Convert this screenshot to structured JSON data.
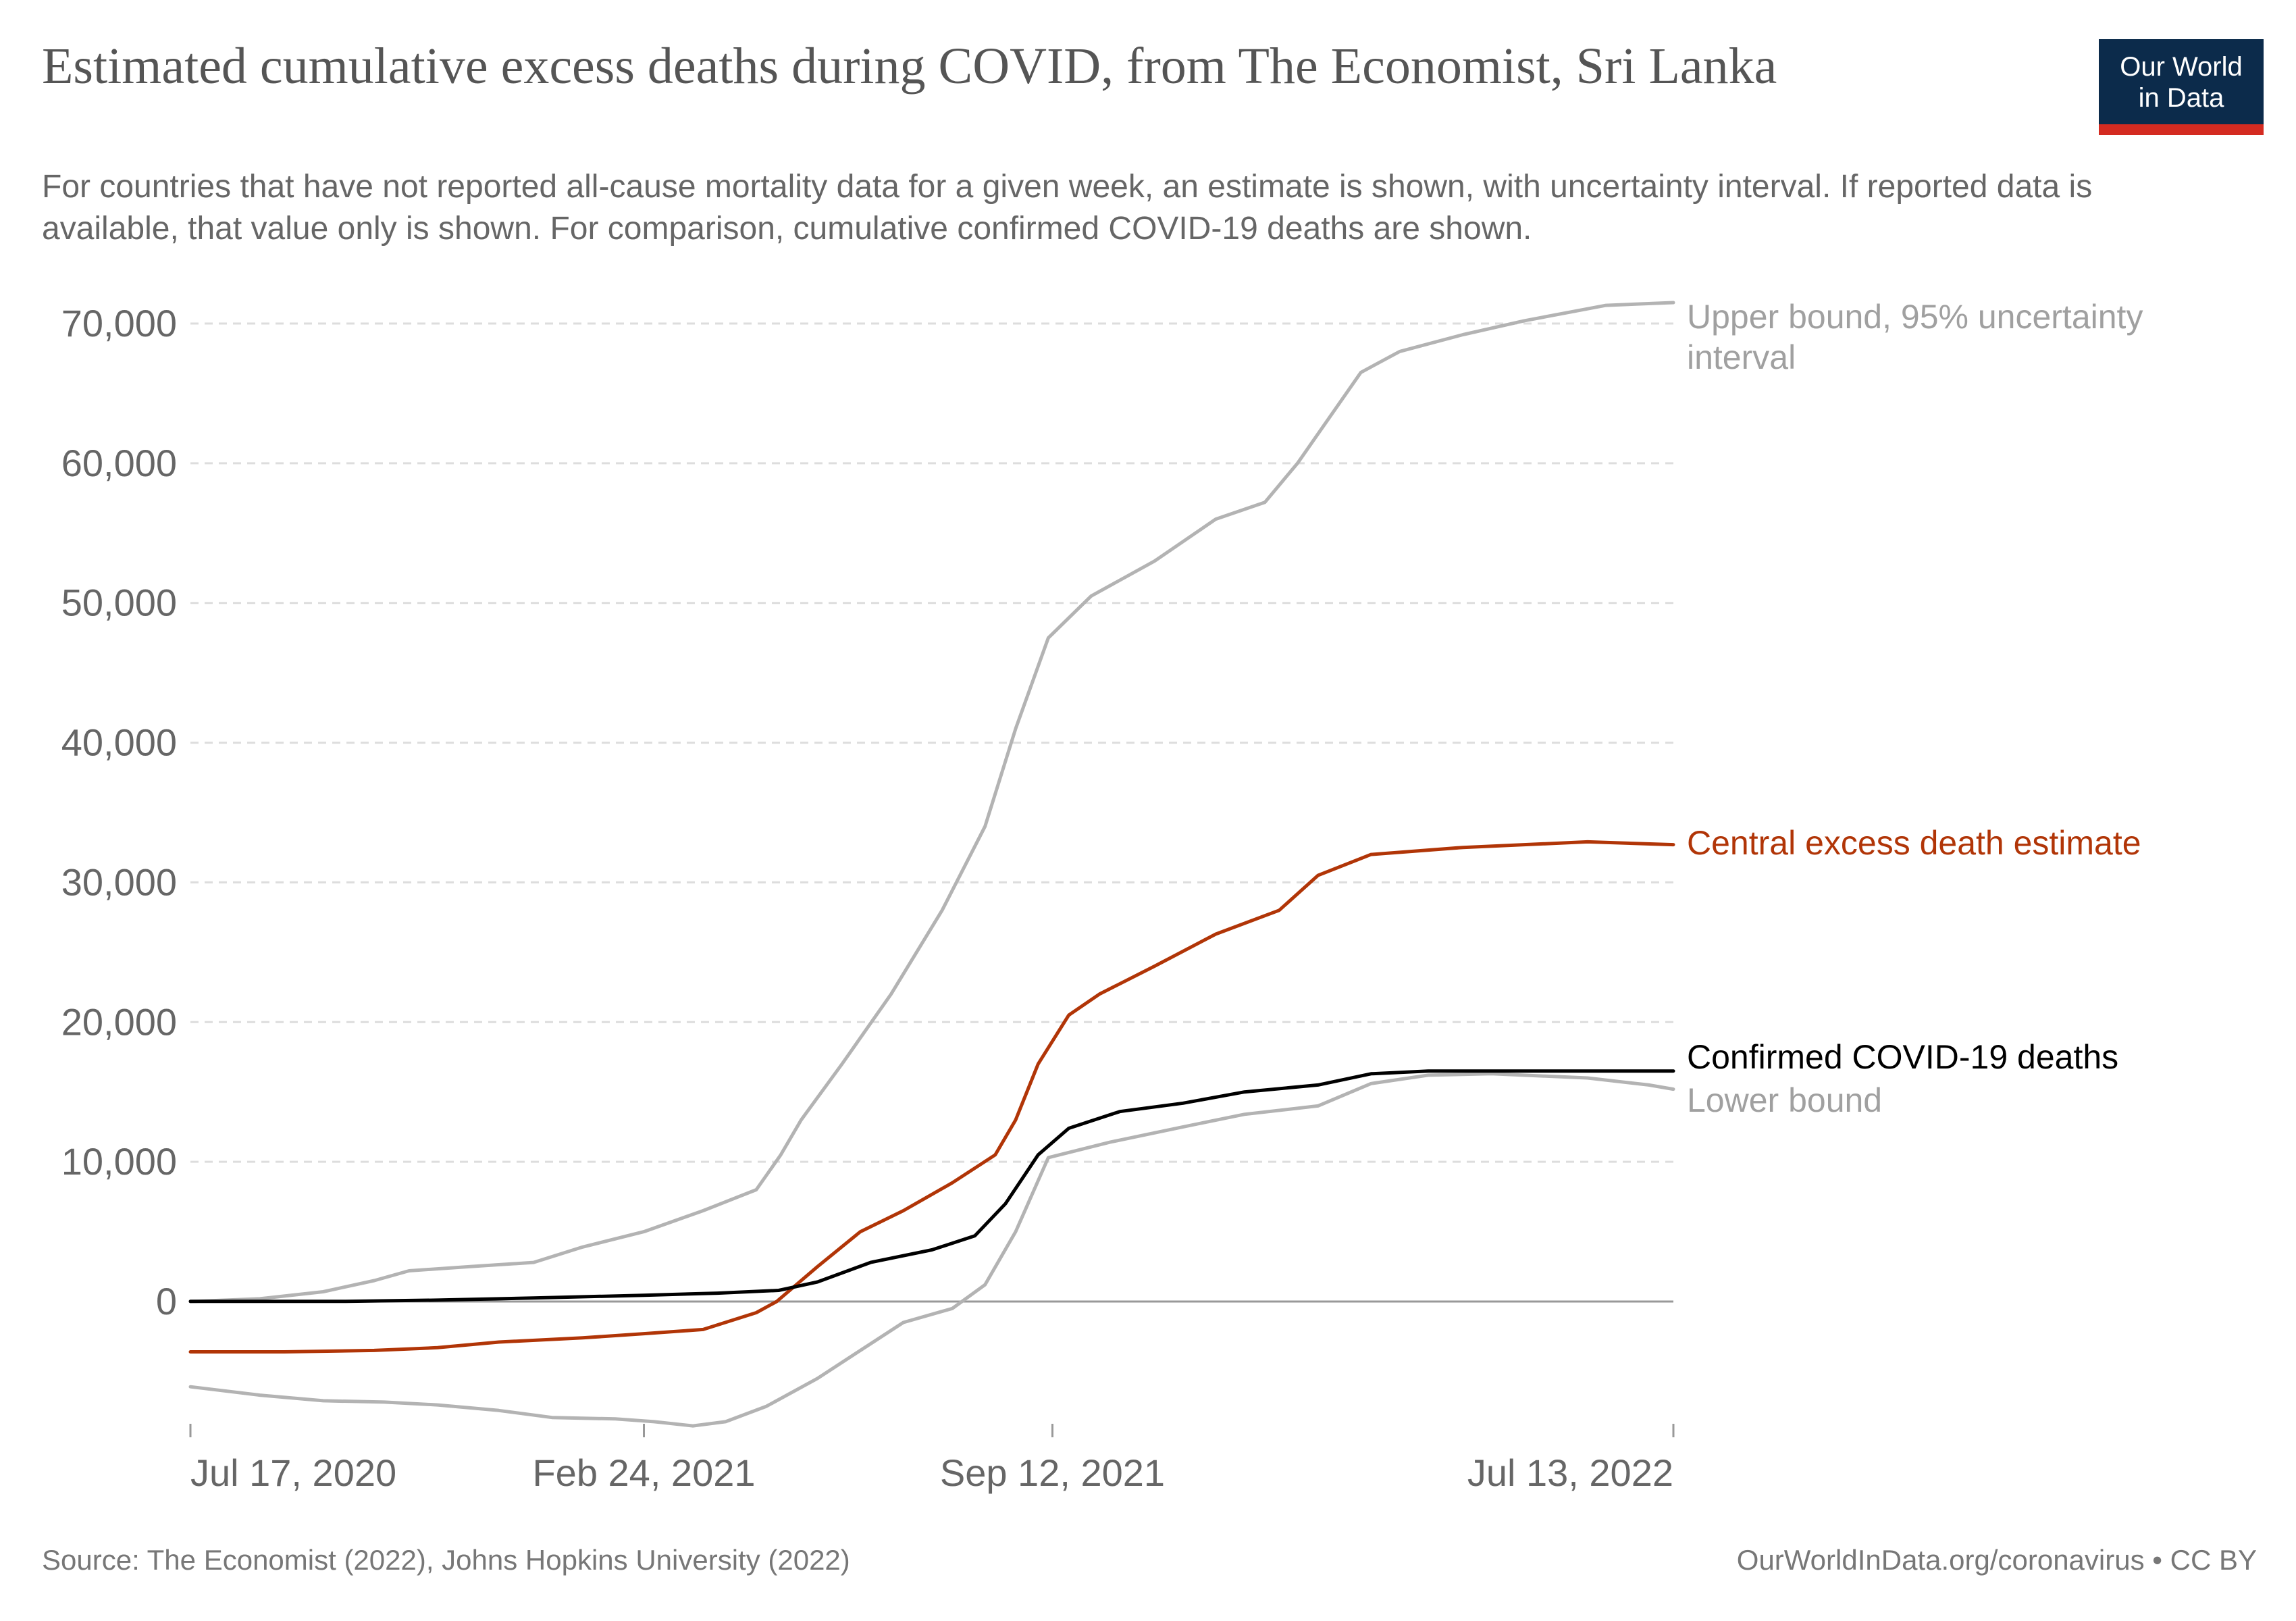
{
  "title": "Estimated cumulative excess deaths during COVID, from The Economist, Sri Lanka",
  "subtitle": "For countries that have not reported all-cause mortality data for a given week, an estimate is shown, with uncertainty interval. If reported data is available, that value only is shown. For comparison, cumulative confirmed COVID-19 deaths are shown.",
  "logo": {
    "line1": "Our World",
    "line2": "in Data"
  },
  "source": "Source: The Economist (2022), Johns Hopkins University (2022)",
  "credit": "OurWorldInData.org/coronavirus • CC BY",
  "colors": {
    "upper": "#b3b3b3",
    "lower": "#b3b3b3",
    "central": "#b13507",
    "confirmed": "#000000",
    "grid": "#dddddd",
    "zero": "#999999",
    "text": "#666666"
  },
  "chart_data": {
    "type": "line",
    "x_type": "date",
    "x_ticks": [
      "Jul 17, 2020",
      "Feb 24, 2021",
      "Sep 12, 2021",
      "Jul 13, 2022"
    ],
    "xlim": [
      "2020-07-17",
      "2022-07-13"
    ],
    "ylim": [
      -9000,
      72000
    ],
    "y_ticks": [
      0,
      10000,
      20000,
      30000,
      40000,
      50000,
      60000,
      70000
    ],
    "y_tick_labels": [
      "0",
      "10,000",
      "20,000",
      "30,000",
      "40,000",
      "50,000",
      "60,000",
      "70,000"
    ],
    "grid": true,
    "legend": "inline-right",
    "series": [
      {
        "name": "Upper bound, 95% uncertainty interval",
        "key": "upper",
        "points": [
          [
            "2020-07-17",
            0
          ],
          [
            "2020-08-20",
            200
          ],
          [
            "2020-09-20",
            700
          ],
          [
            "2020-10-15",
            1500
          ],
          [
            "2020-11-01",
            2200
          ],
          [
            "2020-12-01",
            2500
          ],
          [
            "2021-01-01",
            2800
          ],
          [
            "2021-01-25",
            3900
          ],
          [
            "2021-02-24",
            5000
          ],
          [
            "2021-03-25",
            6500
          ],
          [
            "2021-04-20",
            8000
          ],
          [
            "2021-05-02",
            10500
          ],
          [
            "2021-05-12",
            13000
          ],
          [
            "2021-06-01",
            17000
          ],
          [
            "2021-06-25",
            22000
          ],
          [
            "2021-07-20",
            28000
          ],
          [
            "2021-08-10",
            34000
          ],
          [
            "2021-08-25",
            41000
          ],
          [
            "2021-09-10",
            47500
          ],
          [
            "2021-10-01",
            50500
          ],
          [
            "2021-11-01",
            53000
          ],
          [
            "2021-12-01",
            56000
          ],
          [
            "2021-12-25",
            57200
          ],
          [
            "2022-01-10",
            60000
          ],
          [
            "2022-02-10",
            66500
          ],
          [
            "2022-03-01",
            68000
          ],
          [
            "2022-04-01",
            69200
          ],
          [
            "2022-05-01",
            70200
          ],
          [
            "2022-06-10",
            71300
          ],
          [
            "2022-07-13",
            71500
          ]
        ]
      },
      {
        "name": "Central excess death estimate",
        "key": "central",
        "points": [
          [
            "2020-07-17",
            -3600
          ],
          [
            "2020-09-01",
            -3600
          ],
          [
            "2020-10-15",
            -3500
          ],
          [
            "2020-11-15",
            -3300
          ],
          [
            "2020-12-15",
            -2900
          ],
          [
            "2021-01-25",
            -2600
          ],
          [
            "2021-02-24",
            -2300
          ],
          [
            "2021-03-25",
            -2000
          ],
          [
            "2021-04-20",
            -800
          ],
          [
            "2021-04-30",
            0
          ],
          [
            "2021-05-20",
            2500
          ],
          [
            "2021-06-10",
            5000
          ],
          [
            "2021-07-01",
            6500
          ],
          [
            "2021-07-25",
            8500
          ],
          [
            "2021-08-15",
            10500
          ],
          [
            "2021-08-25",
            13000
          ],
          [
            "2021-09-05",
            17000
          ],
          [
            "2021-09-20",
            20500
          ],
          [
            "2021-10-05",
            22000
          ],
          [
            "2021-11-01",
            24000
          ],
          [
            "2021-12-01",
            26300
          ],
          [
            "2022-01-01",
            28000
          ],
          [
            "2022-01-20",
            30500
          ],
          [
            "2022-02-15",
            32000
          ],
          [
            "2022-04-01",
            32500
          ],
          [
            "2022-06-01",
            32900
          ],
          [
            "2022-07-13",
            32700
          ]
        ]
      },
      {
        "name": "Confirmed COVID-19 deaths",
        "key": "confirmed",
        "points": [
          [
            "2020-07-17",
            11
          ],
          [
            "2020-10-01",
            13
          ],
          [
            "2020-11-15",
            100
          ],
          [
            "2021-01-01",
            250
          ],
          [
            "2021-02-24",
            450
          ],
          [
            "2021-04-01",
            600
          ],
          [
            "2021-05-01",
            800
          ],
          [
            "2021-05-20",
            1400
          ],
          [
            "2021-06-15",
            2800
          ],
          [
            "2021-07-15",
            3700
          ],
          [
            "2021-08-05",
            4700
          ],
          [
            "2021-08-20",
            7000
          ],
          [
            "2021-09-05",
            10500
          ],
          [
            "2021-09-20",
            12400
          ],
          [
            "2021-10-15",
            13600
          ],
          [
            "2021-11-15",
            14200
          ],
          [
            "2021-12-15",
            15000
          ],
          [
            "2022-01-20",
            15500
          ],
          [
            "2022-02-15",
            16300
          ],
          [
            "2022-03-15",
            16500
          ],
          [
            "2022-07-13",
            16500
          ]
        ]
      },
      {
        "name": "Lower bound",
        "key": "lower",
        "points": [
          [
            "2020-07-17",
            -6100
          ],
          [
            "2020-08-20",
            -6700
          ],
          [
            "2020-09-20",
            -7100
          ],
          [
            "2020-10-20",
            -7200
          ],
          [
            "2020-11-15",
            -7400
          ],
          [
            "2020-12-15",
            -7800
          ],
          [
            "2021-01-10",
            -8300
          ],
          [
            "2021-02-10",
            -8400
          ],
          [
            "2021-03-01",
            -8600
          ],
          [
            "2021-03-20",
            -8900
          ],
          [
            "2021-04-05",
            -8600
          ],
          [
            "2021-04-25",
            -7500
          ],
          [
            "2021-05-20",
            -5500
          ],
          [
            "2021-06-10",
            -3500
          ],
          [
            "2021-07-01",
            -1500
          ],
          [
            "2021-07-25",
            -500
          ],
          [
            "2021-08-10",
            1200
          ],
          [
            "2021-08-25",
            5000
          ],
          [
            "2021-09-10",
            10300
          ],
          [
            "2021-10-10",
            11400
          ],
          [
            "2021-11-15",
            12500
          ],
          [
            "2021-12-15",
            13400
          ],
          [
            "2022-01-20",
            14000
          ],
          [
            "2022-02-15",
            15600
          ],
          [
            "2022-03-15",
            16200
          ],
          [
            "2022-04-15",
            16300
          ],
          [
            "2022-06-01",
            16000
          ],
          [
            "2022-07-01",
            15500
          ],
          [
            "2022-07-13",
            15200
          ]
        ]
      }
    ],
    "labels": [
      {
        "key": "upper",
        "lines": [
          "Upper bound, 95% uncertainty",
          "interval"
        ]
      },
      {
        "key": "central",
        "lines": [
          "Central excess death estimate"
        ]
      },
      {
        "key": "confirmed",
        "lines": [
          "Confirmed COVID-19 deaths"
        ]
      },
      {
        "key": "lower",
        "lines": [
          "Lower bound"
        ]
      }
    ]
  }
}
